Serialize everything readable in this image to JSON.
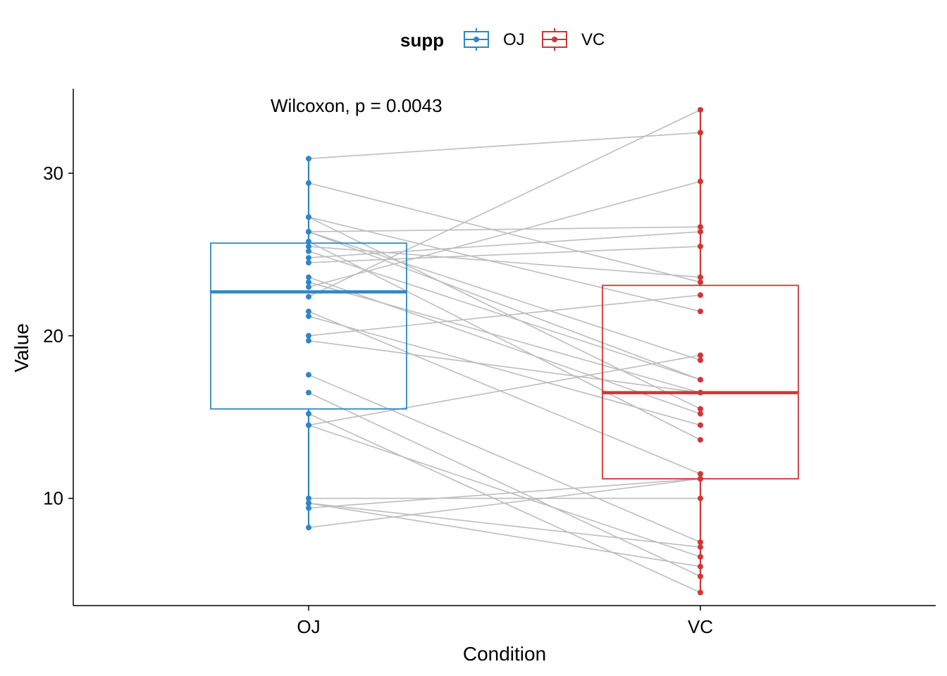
{
  "chart_data": {
    "type": "boxplot",
    "title": "",
    "xlabel": "Condition",
    "ylabel": "Value",
    "categories": [
      "OJ",
      "VC"
    ],
    "ylim": [
      3.4,
      35.2
    ],
    "yticks": [
      10,
      20,
      30
    ],
    "legend": {
      "title": "supp",
      "placement": "top",
      "entries": [
        {
          "label": "OJ",
          "color": "#2e86c8"
        },
        {
          "label": "VC",
          "color": "#d13639"
        }
      ]
    },
    "annotation": "Wilcoxon, p = 0.0043",
    "boxes": [
      {
        "category": "OJ",
        "q1": 15.5,
        "median": 22.7,
        "q3": 25.7,
        "min": 8.2,
        "max": 30.9,
        "color": "#2e86c8"
      },
      {
        "category": "VC",
        "q1": 11.2,
        "median": 16.5,
        "q3": 23.1,
        "min": 4.2,
        "max": 33.9,
        "color": "#d13639"
      }
    ],
    "pairs": [
      [
        15.2,
        4.2
      ],
      [
        21.5,
        11.5
      ],
      [
        17.6,
        7.3
      ],
      [
        9.7,
        5.8
      ],
      [
        14.5,
        6.4
      ],
      [
        10.0,
        10.0
      ],
      [
        8.2,
        11.2
      ],
      [
        9.4,
        11.2
      ],
      [
        16.5,
        5.2
      ],
      [
        9.7,
        7.0
      ],
      [
        19.7,
        16.5
      ],
      [
        23.3,
        16.5
      ],
      [
        23.6,
        15.2
      ],
      [
        26.4,
        17.3
      ],
      [
        20.0,
        22.5
      ],
      [
        25.2,
        17.3
      ],
      [
        25.8,
        13.6
      ],
      [
        21.2,
        14.5
      ],
      [
        14.5,
        18.8
      ],
      [
        27.3,
        15.5
      ],
      [
        25.5,
        23.6
      ],
      [
        26.4,
        18.5
      ],
      [
        22.4,
        33.9
      ],
      [
        24.5,
        25.5
      ],
      [
        24.8,
        26.4
      ],
      [
        30.9,
        32.5
      ],
      [
        26.4,
        26.7
      ],
      [
        27.3,
        21.5
      ],
      [
        29.4,
        23.3
      ],
      [
        23.0,
        29.5
      ]
    ],
    "grid": false
  }
}
